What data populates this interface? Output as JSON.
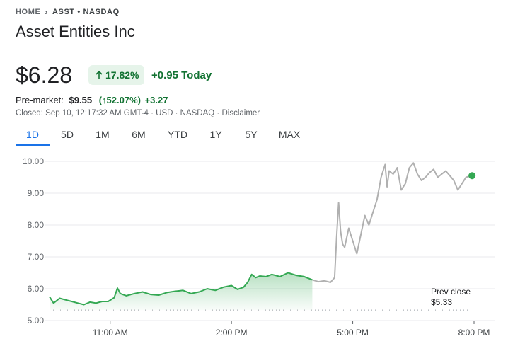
{
  "breadcrumb": {
    "home": "HOME",
    "current": "ASST • NASDAQ"
  },
  "title": "Asset Entities Inc",
  "price": "$6.28",
  "change_pct": "17.82%",
  "change_abs": "+0.95 Today",
  "premarket": {
    "label": "Pre-market:",
    "price": "$9.55",
    "pct": "(↑52.07%)",
    "change": "+3.27"
  },
  "closed_info": {
    "text": "Closed: Sep 10, 12:17:32 AM GMT-4 · USD · NASDAQ · ",
    "disclaimer": "Disclaimer"
  },
  "tabs": [
    {
      "label": "1D",
      "active": true
    },
    {
      "label": "5D",
      "active": false
    },
    {
      "label": "1M",
      "active": false
    },
    {
      "label": "6M",
      "active": false
    },
    {
      "label": "YTD",
      "active": false
    },
    {
      "label": "1Y",
      "active": false
    },
    {
      "label": "5Y",
      "active": false
    },
    {
      "label": "MAX",
      "active": false
    }
  ],
  "colors": {
    "up_green": "#137333",
    "line_green": "#34a853",
    "premarket_gray": "#b0b0b0",
    "accent_blue": "#1a73e8"
  },
  "chart_data": {
    "type": "line",
    "x_unit": "hours",
    "xlim": [
      9.5,
      20.0
    ],
    "ylim": [
      5.0,
      10.0
    ],
    "y_ticks": [
      "5.00",
      "6.00",
      "7.00",
      "8.00",
      "9.00",
      "10.00"
    ],
    "x_ticks": [
      {
        "label": "11:00 AM",
        "value": 11.0
      },
      {
        "label": "2:00 PM",
        "value": 14.0
      },
      {
        "label": "5:00 PM",
        "value": 17.0
      },
      {
        "label": "8:00 PM",
        "value": 20.0
      }
    ],
    "prev_close": {
      "value": 5.33,
      "label_line1": "Prev close",
      "label_line2": "$5.33"
    },
    "series": [
      {
        "session": "regular",
        "x": [
          9.5,
          9.6,
          9.75,
          9.9,
          10.05,
          10.2,
          10.35,
          10.5,
          10.65,
          10.8,
          10.95,
          11.1,
          11.18,
          11.25,
          11.4,
          11.6,
          11.8,
          12.0,
          12.2,
          12.4,
          12.6,
          12.8,
          13.0,
          13.2,
          13.4,
          13.6,
          13.8,
          14.0,
          14.15,
          14.3,
          14.4,
          14.5,
          14.6,
          14.7,
          14.85,
          15.0,
          15.2,
          15.4,
          15.6,
          15.8,
          16.0
        ],
        "y": [
          5.75,
          5.55,
          5.7,
          5.65,
          5.6,
          5.55,
          5.5,
          5.58,
          5.55,
          5.6,
          5.6,
          5.72,
          6.02,
          5.85,
          5.78,
          5.85,
          5.9,
          5.82,
          5.8,
          5.88,
          5.92,
          5.95,
          5.85,
          5.9,
          6.0,
          5.95,
          6.05,
          6.1,
          5.98,
          6.05,
          6.2,
          6.45,
          6.35,
          6.4,
          6.38,
          6.45,
          6.38,
          6.5,
          6.42,
          6.38,
          6.28
        ]
      },
      {
        "session": "after-hours",
        "x": [
          16.0,
          16.15,
          16.3,
          16.45,
          16.55,
          16.6,
          16.65,
          16.7,
          16.75,
          16.8,
          16.85,
          16.9,
          17.0,
          17.1,
          17.2,
          17.3,
          17.4,
          17.5,
          17.6,
          17.7,
          17.8,
          17.85,
          17.9,
          18.0,
          18.1,
          18.2,
          18.3,
          18.4,
          18.5,
          18.6,
          18.7,
          18.8,
          18.9,
          19.0,
          19.1,
          19.2,
          19.3,
          19.4,
          19.5,
          19.6,
          19.7,
          19.8,
          19.95
        ],
        "y": [
          6.28,
          6.22,
          6.25,
          6.2,
          6.35,
          7.6,
          8.7,
          7.8,
          7.4,
          7.3,
          7.6,
          7.9,
          7.5,
          7.1,
          7.7,
          8.3,
          8.0,
          8.4,
          8.8,
          9.5,
          9.9,
          9.2,
          9.7,
          9.6,
          9.8,
          9.1,
          9.3,
          9.8,
          9.95,
          9.6,
          9.4,
          9.5,
          9.65,
          9.75,
          9.5,
          9.6,
          9.7,
          9.55,
          9.4,
          9.1,
          9.3,
          9.5,
          9.55
        ]
      }
    ]
  }
}
